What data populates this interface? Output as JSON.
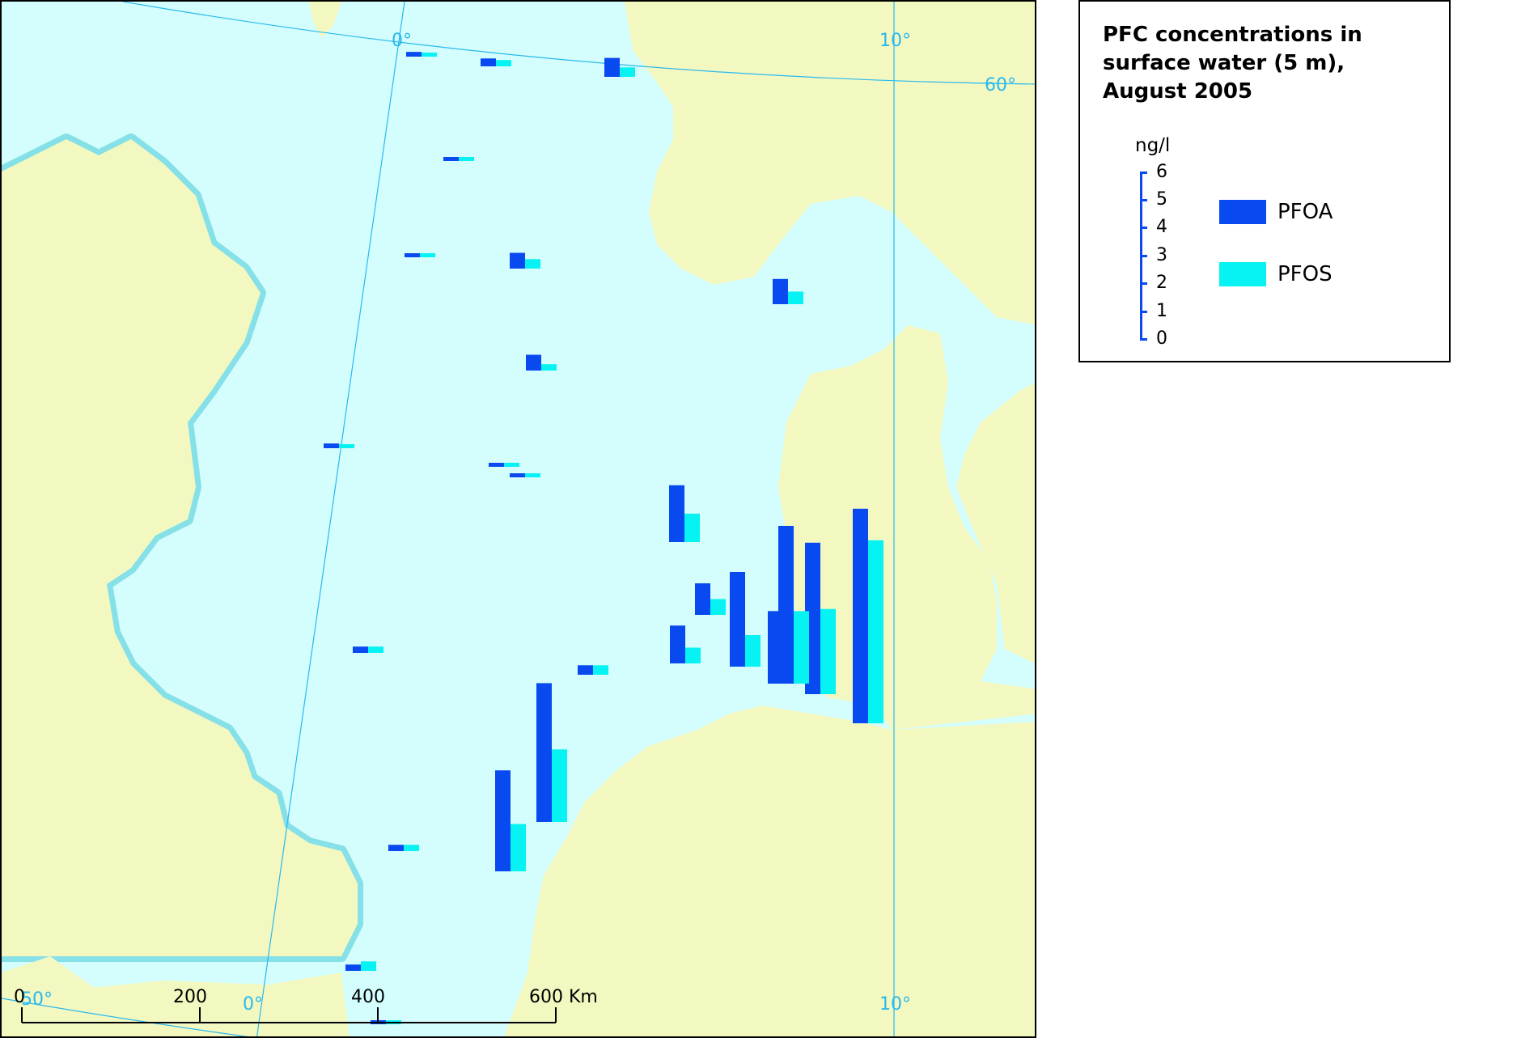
{
  "legend": {
    "title": "PFC concentrations in\nsurface water (5 m),\nAugust 2005",
    "unit": "ng/l",
    "ticks": [
      "6",
      "5",
      "4",
      "3",
      "2",
      "1",
      "0"
    ],
    "series": [
      {
        "key": "PFOA",
        "label": "PFOA",
        "color": "#0949f0"
      },
      {
        "key": "PFOS",
        "label": "PFOS",
        "color": "#07f2f2"
      }
    ]
  },
  "graticule_labels": {
    "lon_0_top": "0°",
    "lon_10_top": "10°",
    "lat_60": "60°",
    "lat_50": "50°",
    "lon_0_bottom": "0°",
    "lon_10_bottom": "10°"
  },
  "scale_bar": {
    "labels": [
      "0",
      "200",
      "400",
      "600 Km"
    ]
  },
  "colors": {
    "sea": "#d4fdfd",
    "land": "#f3f8c1",
    "graticule": "#29b9ef"
  },
  "stations": [
    {
      "id": "s01",
      "pfoa": 0.15,
      "pfos": 0.1
    },
    {
      "id": "s02",
      "pfoa": 0.25,
      "pfos": 0.2
    },
    {
      "id": "s03",
      "pfoa": 0.6,
      "pfos": 0.3
    },
    {
      "id": "s04",
      "pfoa": 0.1,
      "pfos": 0.1
    },
    {
      "id": "s05",
      "pfoa": 0.1,
      "pfos": 0.1
    },
    {
      "id": "s06",
      "pfoa": 0.5,
      "pfos": 0.3
    },
    {
      "id": "s07",
      "pfoa": 0.8,
      "pfos": 0.4
    },
    {
      "id": "s08",
      "pfoa": 0.5,
      "pfos": 0.2
    },
    {
      "id": "s09",
      "pfoa": 0.15,
      "pfos": 0.1
    },
    {
      "id": "s10",
      "pfoa": 0.1,
      "pfos": 0.1
    },
    {
      "id": "s11",
      "pfoa": 0.1,
      "pfos": 0.1
    },
    {
      "id": "s12",
      "pfoa": 1.8,
      "pfos": 0.9
    },
    {
      "id": "s13",
      "pfoa": 1.0,
      "pfos": 0.5
    },
    {
      "id": "s14",
      "pfoa": 3.0,
      "pfos": 1.0
    },
    {
      "id": "s15",
      "pfoa": 1.2,
      "pfos": 0.5
    },
    {
      "id": "s16",
      "pfoa": 2.3,
      "pfos": 1.0
    },
    {
      "id": "s17",
      "pfoa": 4.8,
      "pfos": 2.7
    },
    {
      "id": "s18",
      "pfoa": 5.0,
      "pfos": 2.3
    },
    {
      "id": "s19",
      "pfoa": 6.8,
      "pfos": 5.8
    },
    {
      "id": "s20",
      "pfoa": 0.2,
      "pfos": 0.2
    },
    {
      "id": "s21",
      "pfoa": 0.3,
      "pfos": 0.3
    },
    {
      "id": "s22",
      "pfoa": 3.2,
      "pfos": 1.5
    },
    {
      "id": "s23",
      "pfoa": 4.4,
      "pfos": 2.3
    },
    {
      "id": "s24",
      "pfoa": 0.2,
      "pfos": 0.2
    },
    {
      "id": "s25",
      "pfoa": 0.2,
      "pfos": 0.3
    },
    {
      "id": "s26",
      "pfoa": 0.1,
      "pfos": 0.1
    }
  ]
}
